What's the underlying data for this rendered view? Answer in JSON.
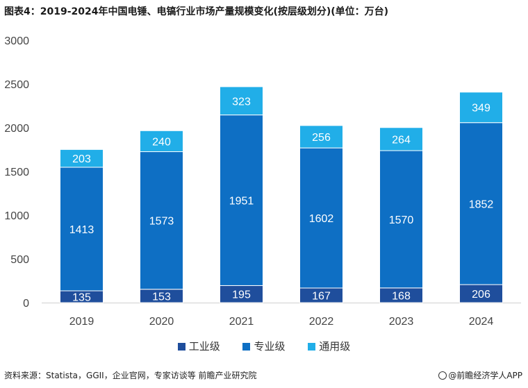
{
  "title": "图表4：2019-2024年中国电锤、电镐行业市场产量规模变化(按层级划分)(单位：万台)",
  "source": "资料来源：Statista，GGII，企业官网，专家访谈等 前瞻产业研究院",
  "brand": "@前瞻经济学人APP",
  "chart_data": {
    "type": "bar",
    "stacked": true,
    "categories": [
      "2019",
      "2020",
      "2021",
      "2022",
      "2023",
      "2024"
    ],
    "series": [
      {
        "name": "工业级",
        "values": [
          135,
          153,
          195,
          167,
          168,
          206
        ],
        "color": "#1f4e9c"
      },
      {
        "name": "专业级",
        "values": [
          1413,
          1573,
          1951,
          1602,
          1570,
          1852
        ],
        "color": "#0e6fc4"
      },
      {
        "name": "通用级",
        "values": [
          203,
          240,
          323,
          256,
          264,
          349
        ],
        "color": "#21aee8"
      }
    ],
    "ylim": [
      0,
      3000
    ],
    "yticks": [
      0,
      500,
      1000,
      1500,
      2000,
      2500,
      3000
    ],
    "grid": false,
    "legend": "bottom"
  }
}
